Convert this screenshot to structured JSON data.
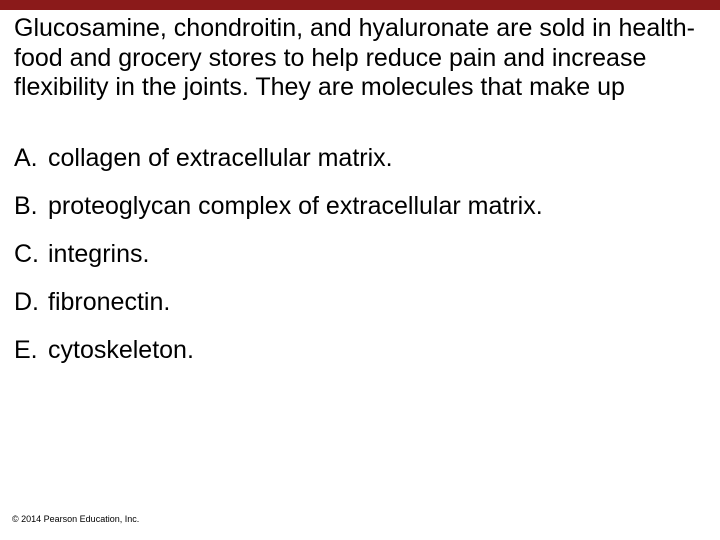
{
  "colors": {
    "top_bar": "#8b1a1a",
    "background": "#ffffff",
    "text": "#000000"
  },
  "question": {
    "text": "Glucosamine, chondroitin, and hyaluronate are sold in health-food and grocery stores to help reduce pain and increase flexibility in the joints. They are molecules that make up",
    "fontsize": 25
  },
  "options": [
    {
      "letter": "A.",
      "text": "collagen of extracellular matrix."
    },
    {
      "letter": "B.",
      "text": "proteoglycan complex of extracellular matrix."
    },
    {
      "letter": "C.",
      "text": "integrins."
    },
    {
      "letter": "D.",
      "text": "fibronectin."
    },
    {
      "letter": "E.",
      "text": "cytoskeleton."
    }
  ],
  "copyright": "© 2014 Pearson Education, Inc."
}
